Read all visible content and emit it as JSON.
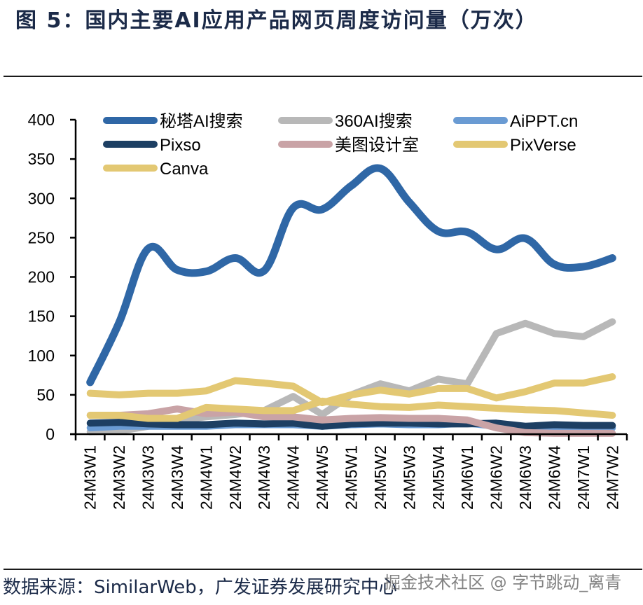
{
  "header": {
    "title": "图 5：国内主要AI应用产品网页周度访问量（万次）"
  },
  "footer": {
    "source": "数据来源：SimilarWeb，广发证券发展研究中心",
    "watermark": "掘金技术社区 @ 字节跳动_离青"
  },
  "chart_data": {
    "type": "line",
    "title": "国内主要AI应用产品网页周度访问量（万次）",
    "xlabel": "",
    "ylabel": "",
    "ylim": [
      0,
      400
    ],
    "yticks": [
      0,
      50,
      100,
      150,
      200,
      250,
      300,
      350,
      400
    ],
    "grid": false,
    "legend_position": "top-left",
    "categories": [
      "24M3W1",
      "24M3W2",
      "24M3W3",
      "24M3W4",
      "24M4W1",
      "24M4W2",
      "24M4W3",
      "24M4W4",
      "24M4W5",
      "24M5W1",
      "24M5W2",
      "24M5W3",
      "24M5W4",
      "24M6W1",
      "24M6W2",
      "24M6W3",
      "24M6W4",
      "24M7W1",
      "24M7W2"
    ],
    "series": [
      {
        "name": "秘塔AI搜索",
        "color": "#2f67a6",
        "values": [
          66,
          142,
          236,
          209,
          207,
          224,
          208,
          288,
          286,
          316,
          338,
          295,
          258,
          257,
          235,
          249,
          216,
          213,
          224
        ]
      },
      {
        "name": "360AI搜索",
        "color": "#b8b8b8",
        "values": [
          3,
          4,
          10,
          18,
          22,
          25,
          30,
          48,
          25,
          50,
          64,
          55,
          70,
          64,
          128,
          141,
          128,
          124,
          143
        ]
      },
      {
        "name": "AiPPT.cn",
        "color": "#6a9bd3",
        "values": [
          8,
          10,
          10,
          10,
          10,
          12,
          12,
          12,
          10,
          12,
          13,
          12,
          12,
          14,
          10,
          8,
          8,
          8,
          8
        ]
      },
      {
        "name": "Pixso",
        "color": "#1d3f63",
        "values": [
          14,
          15,
          13,
          12,
          12,
          14,
          13,
          14,
          10,
          13,
          14,
          14,
          13,
          13,
          14,
          10,
          12,
          11,
          11
        ]
      },
      {
        "name": "美图设计室",
        "color": "#c9a3a6",
        "values": [
          24,
          24,
          26,
          32,
          26,
          28,
          22,
          22,
          18,
          20,
          21,
          20,
          20,
          18,
          8,
          2,
          1,
          1,
          1
        ]
      },
      {
        "name": "PixVerse",
        "color": "#e3c873",
        "values": [
          52,
          50,
          52,
          52,
          55,
          68,
          65,
          61,
          40,
          50,
          56,
          51,
          58,
          58,
          46,
          54,
          65,
          65,
          73
        ]
      },
      {
        "name": "Canva",
        "color": "#e3c873",
        "values": [
          24,
          24,
          20,
          20,
          34,
          32,
          30,
          30,
          42,
          38,
          35,
          34,
          37,
          35,
          33,
          31,
          30,
          27,
          24
        ]
      }
    ]
  }
}
